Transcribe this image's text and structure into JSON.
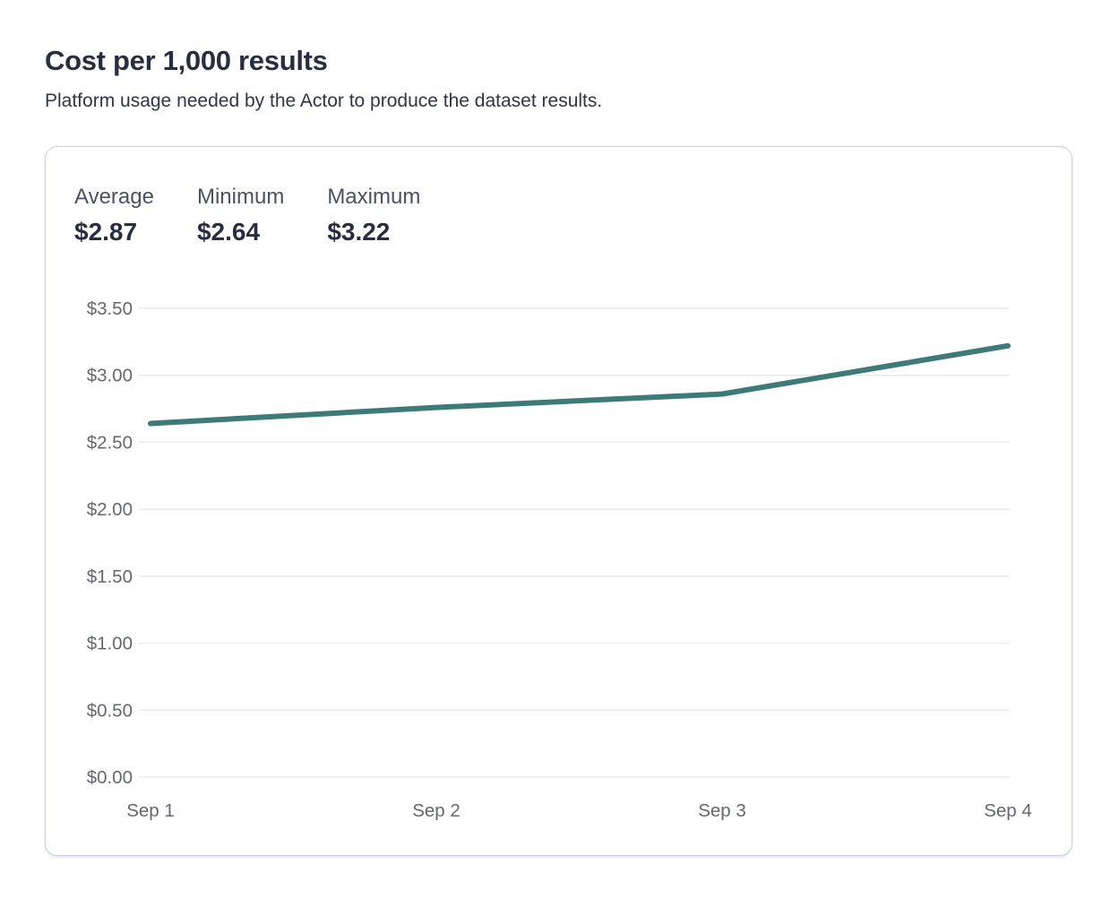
{
  "header": {
    "title": "Cost per 1,000 results",
    "subtitle": "Platform usage needed by the Actor to produce the dataset results."
  },
  "card": {
    "stats": [
      {
        "label": "Average",
        "value": "$2.87"
      },
      {
        "label": "Minimum",
        "value": "$2.64"
      },
      {
        "label": "Maximum",
        "value": "$3.22"
      }
    ]
  },
  "chart_data": {
    "type": "line",
    "title": "Cost per 1,000 results",
    "categories": [
      "Sep 1",
      "Sep 2",
      "Sep 3",
      "Sep 4"
    ],
    "series": [
      {
        "name": "Cost per 1,000 results",
        "values": [
          2.64,
          2.76,
          2.86,
          3.22
        ]
      }
    ],
    "xlabel": "",
    "ylabel": "",
    "ylim": [
      0,
      3.5
    ],
    "ytick_step": 0.5,
    "ytick_labels": [
      "$0.00",
      "$0.50",
      "$1.00",
      "$1.50",
      "$2.00",
      "$2.50",
      "$3.00",
      "$3.50"
    ],
    "grid": true,
    "legend": "none",
    "line_color": "#3d7a78",
    "grid_color": "#e9eaec",
    "tick_label_color": "#64676d"
  },
  "colors": {
    "accent_line": "#3d7a78",
    "card_border": "#c9cde9",
    "title_text": "#272e41",
    "stat_label_text": "#4a5166",
    "gridline": "#e9eaec"
  }
}
